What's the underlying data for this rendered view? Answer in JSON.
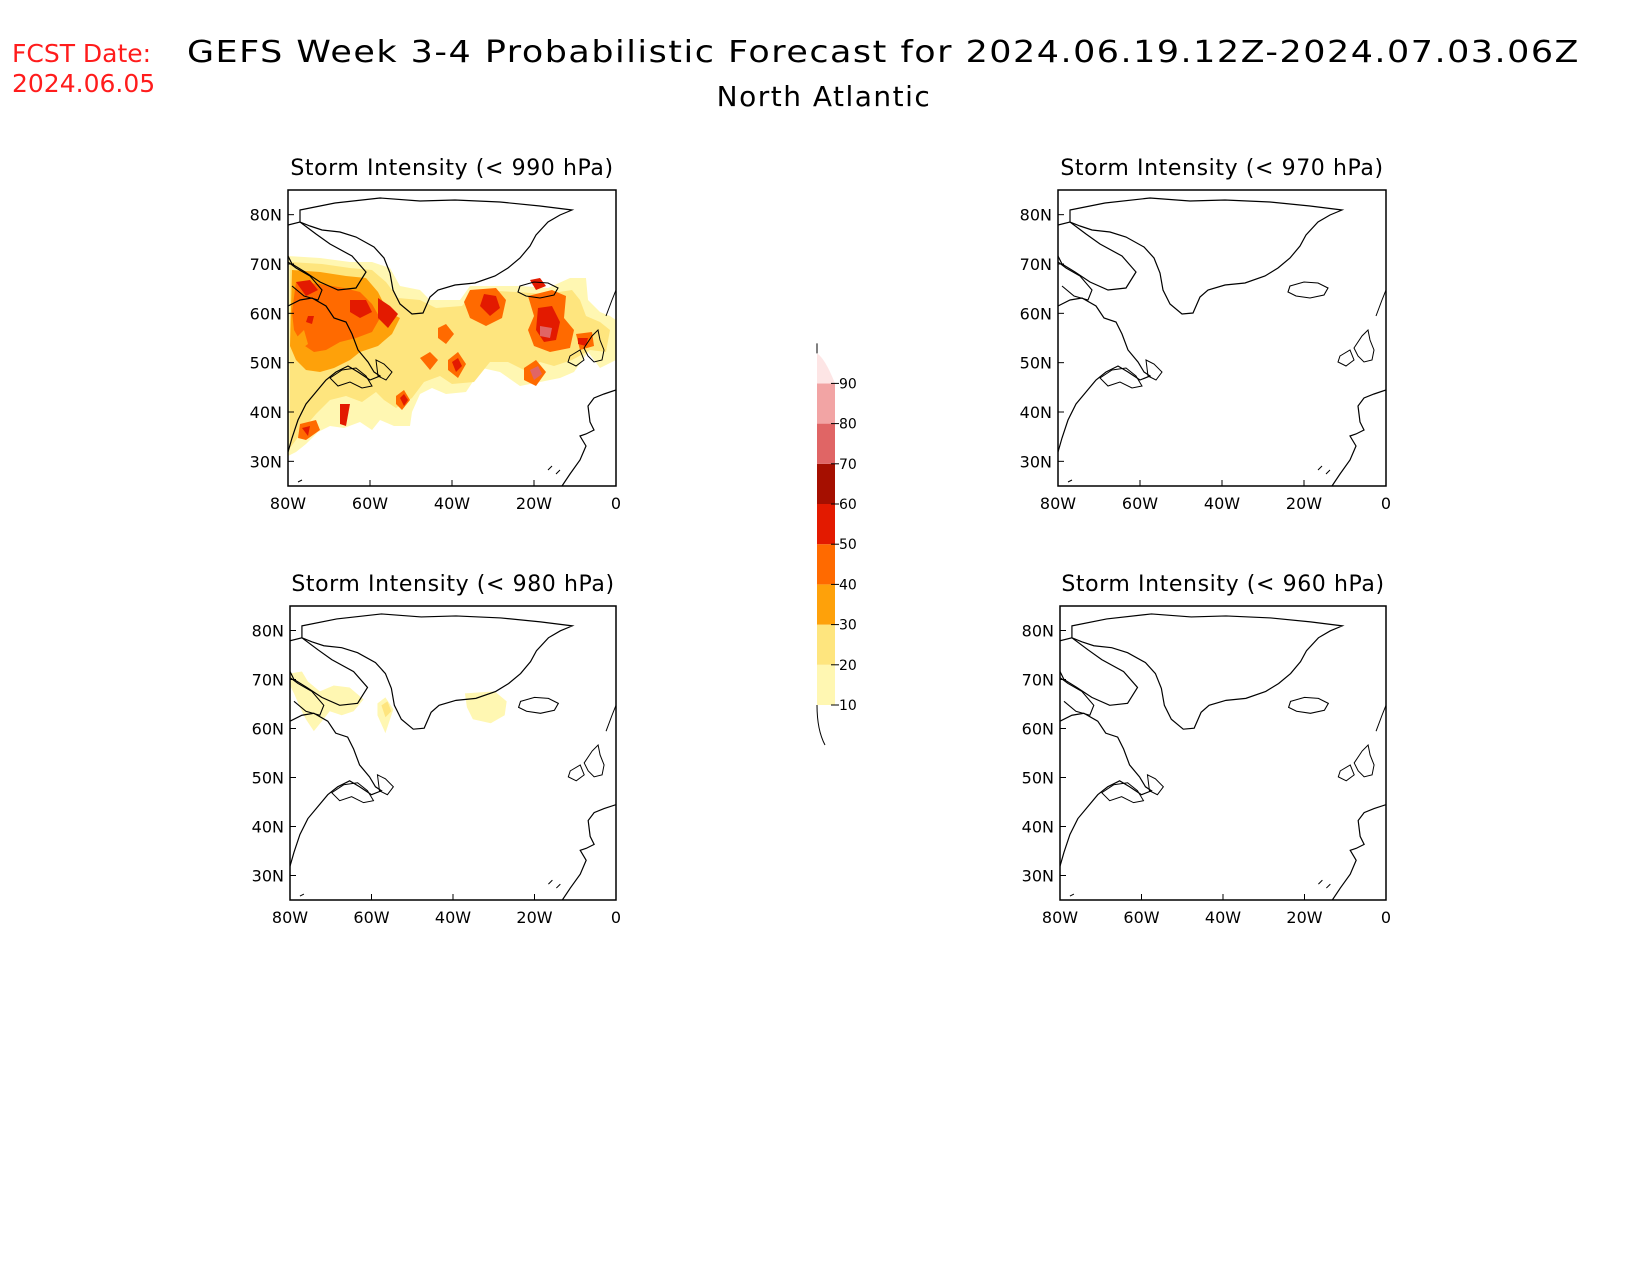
{
  "header": {
    "fcst_label": "FCST Date:",
    "fcst_date": "2024.06.05",
    "title": "GEFS Week 3-4 Probabilistic Forecast for 2024.06.19.12Z-2024.07.03.06Z",
    "subtitle": "North Atlantic"
  },
  "axes": {
    "x_ticks": [
      "80W",
      "60W",
      "40W",
      "20W",
      "0"
    ],
    "y_ticks": [
      "30N",
      "40N",
      "50N",
      "60N",
      "70N",
      "80N"
    ],
    "lon_range": [
      -80,
      0
    ],
    "lat_range": [
      25,
      85
    ]
  },
  "panels": [
    {
      "title": "Storm Intensity (< 990 hPa)"
    },
    {
      "title": "Storm Intensity (< 970 hPa)"
    },
    {
      "title": "Storm Intensity (< 980 hPa)"
    },
    {
      "title": "Storm Intensity (< 960 hPa)"
    }
  ],
  "colorbar": {
    "levels": [
      "10",
      "20",
      "30",
      "40",
      "50",
      "60",
      "70",
      "80",
      "90"
    ],
    "colors": [
      "#fff7b2",
      "#fee57e",
      "#fea10a",
      "#ff6a00",
      "#e31a00",
      "#a50f00",
      "#e06565",
      "#f2a4a4",
      "#fde5e5"
    ]
  },
  "colors": {
    "fcst": "#ff1c1c",
    "coast": "#000000"
  }
}
